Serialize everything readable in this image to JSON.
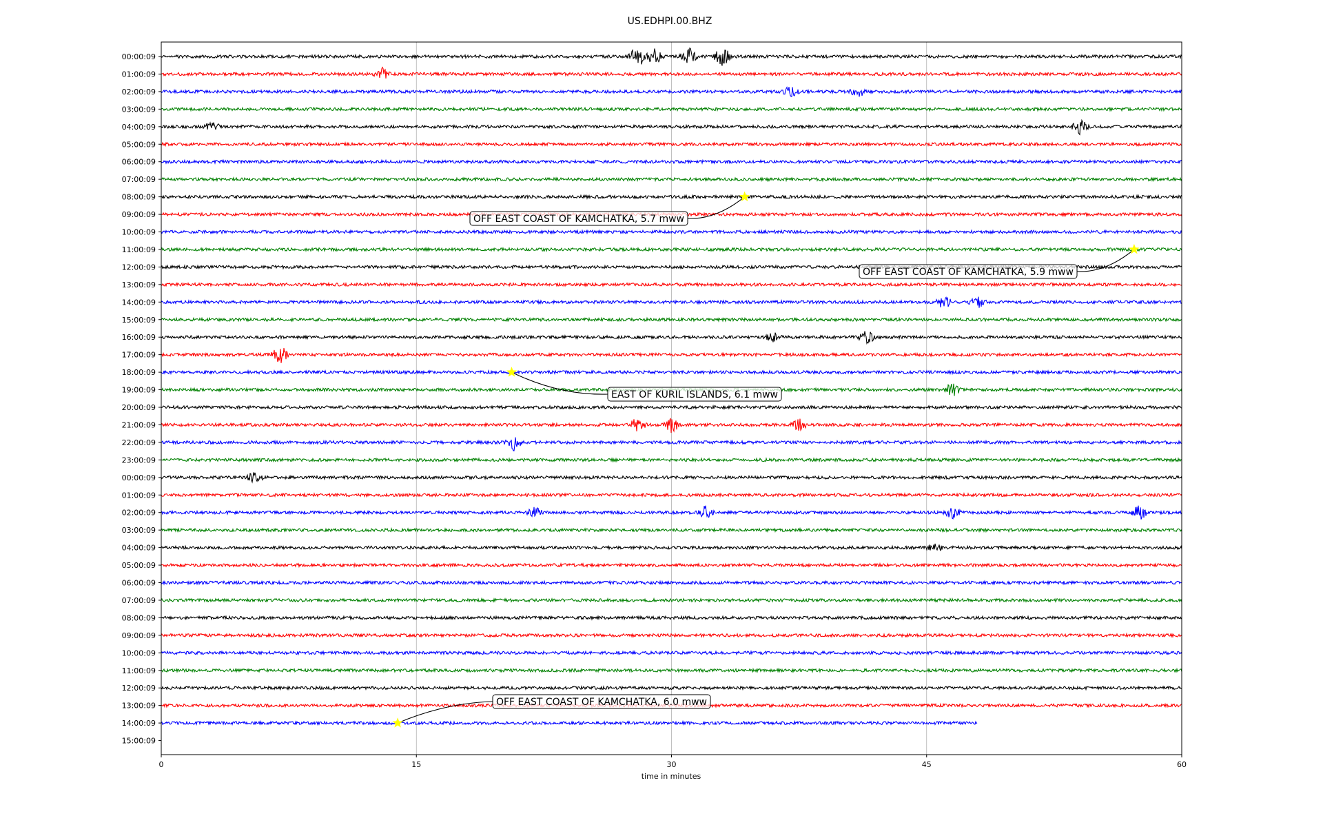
{
  "chart_data": {
    "type": "line",
    "title": "US.EDHPI.00.BHZ",
    "xlabel": "time in minutes",
    "xlim": [
      0,
      60
    ],
    "x_ticks": [
      "0",
      "15",
      "30",
      "45",
      "60"
    ],
    "x_tick_values": [
      0,
      15,
      30,
      45,
      60
    ],
    "grid": "vertical",
    "trace_colors": [
      "#000000",
      "#ff0000",
      "#0000ff",
      "#008000"
    ],
    "rows": [
      "00:00:09",
      "01:00:09",
      "02:00:09",
      "03:00:09",
      "04:00:09",
      "05:00:09",
      "06:00:09",
      "07:00:09",
      "08:00:09",
      "09:00:09",
      "10:00:09",
      "11:00:09",
      "12:00:09",
      "13:00:09",
      "14:00:09",
      "15:00:09",
      "16:00:09",
      "17:00:09",
      "18:00:09",
      "19:00:09",
      "20:00:09",
      "21:00:09",
      "22:00:09",
      "23:00:09",
      "00:00:09",
      "01:00:09",
      "02:00:09",
      "03:00:09",
      "04:00:09",
      "05:00:09",
      "06:00:09",
      "07:00:09",
      "08:00:09",
      "09:00:09",
      "10:00:09",
      "11:00:09",
      "12:00:09",
      "13:00:09",
      "14:00:09",
      "15:00:09"
    ],
    "last_trace_end_minute": 48,
    "events": [
      {
        "label": "OFF EAST COAST OF KAMCHATKA, 5.7 mww",
        "row": 8,
        "minute": 34.3,
        "color": "#ffff00"
      },
      {
        "label": "OFF EAST COAST OF KAMCHATKA, 5.9 mww",
        "row": 11,
        "minute": 57.2,
        "color": "#ffff00"
      },
      {
        "label": "EAST OF KURIL ISLANDS, 6.1 mww",
        "row": 18,
        "minute": 20.6,
        "color": "#ffff00"
      },
      {
        "label": "OFF EAST COAST OF KAMCHATKA, 6.0 mww",
        "row": 38,
        "minute": 13.9,
        "color": "#ffff00"
      }
    ]
  }
}
